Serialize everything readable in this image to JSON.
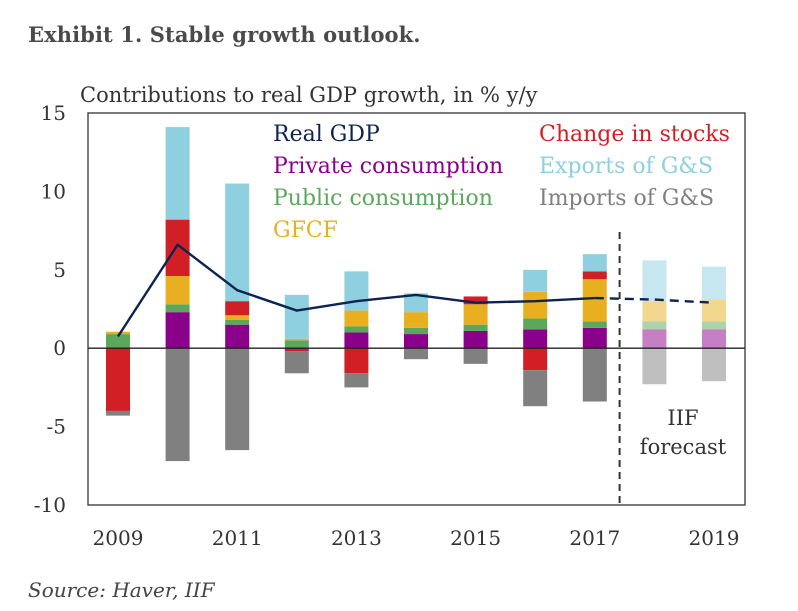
{
  "exhibit_title": "Exhibit 1. Stable growth outlook.",
  "source": "Source: Haver, IIF",
  "chart_data": {
    "type": "bar",
    "subtitle": "Contributions to real GDP growth, in % y/y",
    "ylim": [
      -10,
      15
    ],
    "yticks": [
      15,
      10,
      5,
      0,
      -5,
      -10
    ],
    "ytick_labels": [
      "15",
      "10",
      "5",
      "0",
      "-5",
      "-10"
    ],
    "categories": [
      "2009",
      "2010",
      "2011",
      "2012",
      "2013",
      "2014",
      "2015",
      "2016",
      "2017",
      "2018",
      "2019"
    ],
    "xtick_labels": [
      "2009",
      "",
      "2011",
      "",
      "2013",
      "",
      "2015",
      "",
      "2017",
      "",
      "2019"
    ],
    "forecast_from": "2018",
    "forecast_label_line1": "IIF",
    "forecast_label_line2": "forecast",
    "series": [
      {
        "name": "Private consumption",
        "color": "#8B008B",
        "values": [
          0.0,
          2.3,
          1.5,
          -0.1,
          1.0,
          0.9,
          1.1,
          1.2,
          1.3,
          1.2,
          1.2
        ]
      },
      {
        "name": "Public consumption",
        "color": "#5BA85B",
        "values": [
          0.9,
          0.5,
          0.3,
          0.5,
          0.4,
          0.4,
          0.4,
          0.7,
          0.4,
          0.5,
          0.5
        ]
      },
      {
        "name": "GFCF",
        "color": "#E8B020",
        "values": [
          0.15,
          1.8,
          0.3,
          0.1,
          1.0,
          1.0,
          1.3,
          1.7,
          2.7,
          1.3,
          1.4
        ]
      },
      {
        "name": "Change in stocks",
        "color": "#D21F25",
        "values": [
          -4.0,
          3.6,
          0.9,
          -0.1,
          -1.6,
          0.0,
          0.5,
          -1.4,
          0.5,
          0.0,
          0.0
        ]
      },
      {
        "name": "Exports of G&S",
        "color": "#8ECFE0",
        "values": [
          0.0,
          5.9,
          7.5,
          2.8,
          2.5,
          1.2,
          0.0,
          1.4,
          1.1,
          2.6,
          2.1
        ]
      },
      {
        "name": "Imports of G&S",
        "color": "#808080",
        "values": [
          -0.3,
          -7.2,
          -6.5,
          -1.4,
          -0.9,
          -0.7,
          -1.0,
          -2.3,
          -3.4,
          -2.3,
          -2.1
        ]
      }
    ],
    "line": {
      "name": "Real GDP",
      "color": "#0F2350",
      "values": [
        0.75,
        6.6,
        3.7,
        2.4,
        3.0,
        3.4,
        2.9,
        3.0,
        3.2,
        3.1,
        2.9
      ]
    },
    "legend": {
      "left": [
        "Real GDP",
        "Private consumption",
        "Public consumption",
        "GFCF"
      ],
      "right": [
        "Change in stocks",
        "Exports of G&S",
        "Imports of G&S"
      ],
      "colors": {
        "Real GDP": "#0F2350",
        "Private consumption": "#8B008B",
        "Public consumption": "#5BA85B",
        "GFCF": "#E8B020",
        "Change in stocks": "#D21F25",
        "Exports of G&S": "#8ECFE0",
        "Imports of G&S": "#808080"
      }
    }
  }
}
